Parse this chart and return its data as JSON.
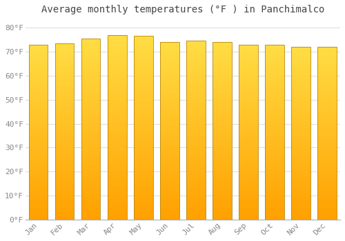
{
  "title": "Average monthly temperatures (°F ) in Panchimalco",
  "months": [
    "Jan",
    "Feb",
    "Mar",
    "Apr",
    "May",
    "Jun",
    "Jul",
    "Aug",
    "Sep",
    "Oct",
    "Nov",
    "Dec"
  ],
  "values": [
    73.0,
    73.5,
    75.5,
    77.0,
    76.5,
    74.0,
    74.5,
    74.0,
    73.0,
    73.0,
    72.0,
    72.0
  ],
  "bar_color_bottom": "#FFA500",
  "bar_color_top": "#FFD700",
  "bar_edge_color": "#B8860B",
  "background_color": "#FFFFFF",
  "grid_color": "#CCCCCC",
  "ytick_labels": [
    "0°F",
    "10°F",
    "20°F",
    "30°F",
    "40°F",
    "50°F",
    "60°F",
    "70°F",
    "80°F"
  ],
  "ytick_values": [
    0,
    10,
    20,
    30,
    40,
    50,
    60,
    70,
    80
  ],
  "ylim": [
    0,
    84
  ],
  "title_fontsize": 10,
  "tick_fontsize": 8,
  "font_family": "monospace"
}
